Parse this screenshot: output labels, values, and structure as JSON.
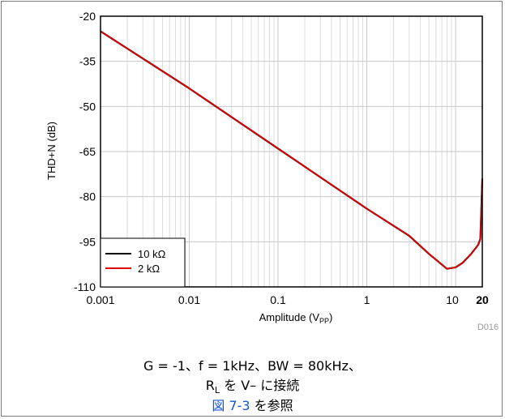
{
  "chart_data": {
    "type": "line",
    "xlabel_main": "Amplitude (V",
    "xlabel_sub": "PP",
    "xlabel_end": ")",
    "ylabel": "THD+N (dB)",
    "x_scale": "log",
    "xlim": [
      0.001,
      20
    ],
    "ylim": [
      -110,
      -20
    ],
    "x_ticks": [
      "0.001",
      "0.01",
      "0.1",
      "1",
      "10",
      "20"
    ],
    "y_ticks": [
      "-20",
      "-35",
      "-50",
      "-65",
      "-80",
      "-95",
      "-110"
    ],
    "grid": true,
    "legend_position": "bottom-left",
    "series": [
      {
        "name": "10 kΩ",
        "color": "#000000",
        "x": [
          0.001,
          0.01,
          0.1,
          1,
          3,
          5,
          8,
          10,
          12,
          15,
          18,
          19,
          20
        ],
        "y": [
          -25,
          -44,
          -64,
          -84,
          -93,
          -99,
          -104,
          -103.5,
          -102,
          -99,
          -96,
          -94,
          -74
        ]
      },
      {
        "name": "2 kΩ",
        "color": "#e00000",
        "x": [
          0.001,
          0.01,
          0.1,
          1,
          3,
          5,
          8,
          10,
          12,
          15,
          18,
          19,
          20
        ],
        "y": [
          -25,
          -44,
          -64,
          -84,
          -93,
          -99,
          -104,
          -103.5,
          -102,
          -99,
          -96,
          -94,
          -74
        ]
      }
    ],
    "figure_code": "D016"
  },
  "caption": {
    "line1": "G = -1、f = 1kHz、BW = 80kHz、",
    "line2_r": "R",
    "line2_sub": "L",
    "line2_rest": " を V– に接続",
    "line3_link": "図 7-3",
    "line3_rest": " を参照"
  }
}
